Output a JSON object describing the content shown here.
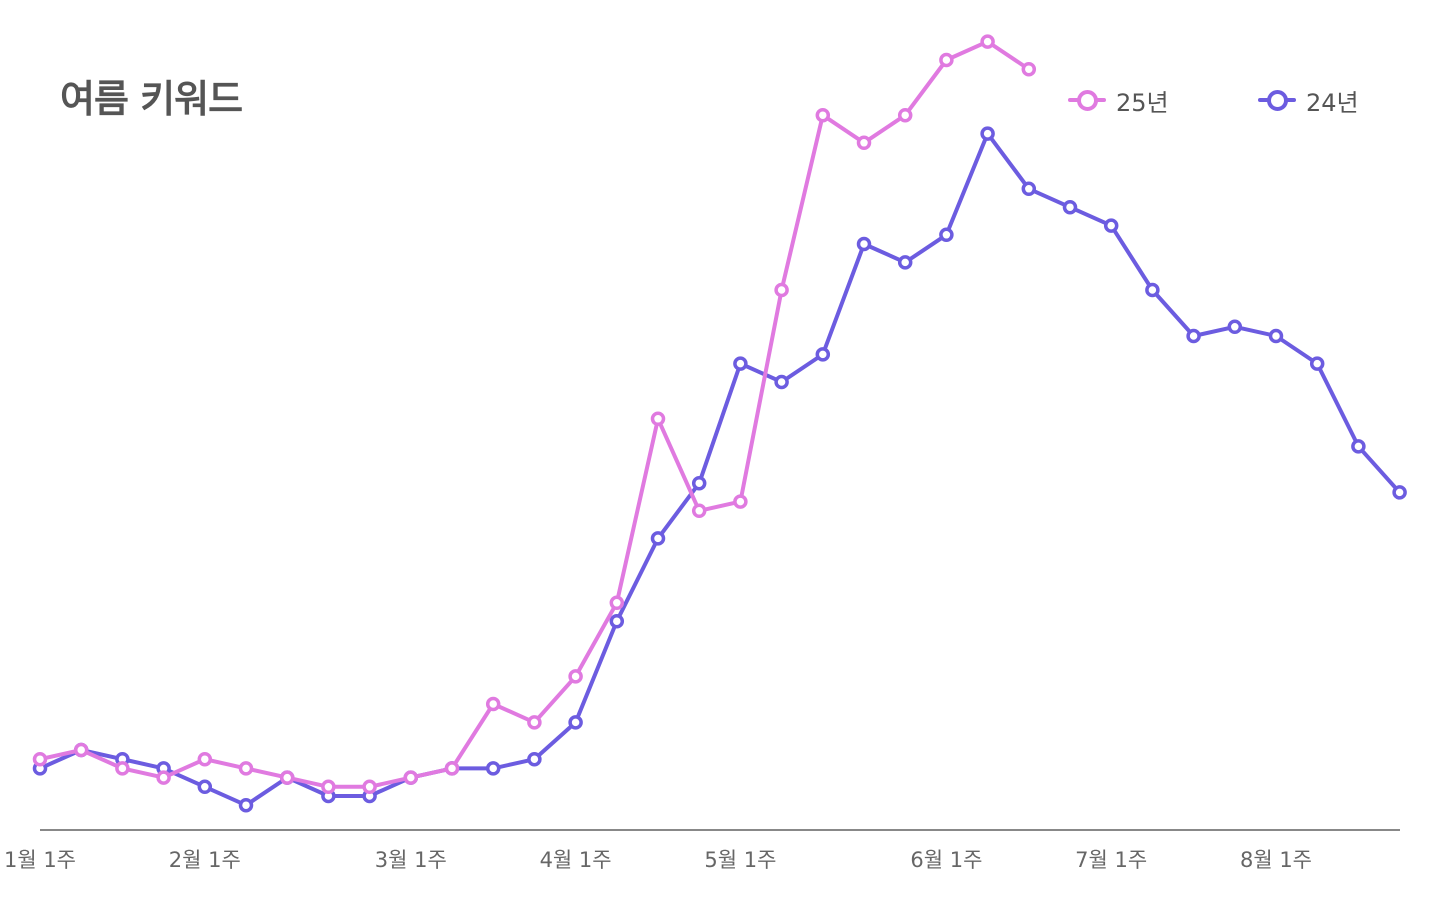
{
  "chart_data": {
    "type": "line",
    "title": "여름 키워드",
    "xlabel": "",
    "ylabel": "",
    "ylim": [
      0,
      100
    ],
    "legend_position": "top-right",
    "grid": false,
    "x_tick_labels": [
      {
        "label": "1월 1주",
        "index": 0
      },
      {
        "label": "2월 1주",
        "index": 4
      },
      {
        "label": "3월 1주",
        "index": 9
      },
      {
        "label": "4월 1주",
        "index": 13
      },
      {
        "label": "5월 1주",
        "index": 17
      },
      {
        "label": "6월 1주",
        "index": 22
      },
      {
        "label": "7월 1주",
        "index": 26
      },
      {
        "label": "8월 1주",
        "index": 30
      }
    ],
    "series": [
      {
        "name": "25년",
        "color": "#e07ae0",
        "values": [
          14,
          15,
          13,
          12,
          14,
          13,
          12,
          11,
          11,
          12,
          13,
          20,
          18,
          23,
          31,
          51,
          41,
          42,
          65,
          84,
          81,
          84,
          90,
          92,
          89
        ]
      },
      {
        "name": "24년",
        "color": "#6c5ce0",
        "values": [
          13,
          15,
          14,
          13,
          11,
          9,
          12,
          10,
          10,
          12,
          13,
          13,
          14,
          18,
          29,
          38,
          44,
          57,
          55,
          58,
          70,
          68,
          71,
          82,
          76,
          74,
          72,
          65,
          60,
          61,
          60,
          57,
          48,
          43
        ]
      }
    ]
  }
}
